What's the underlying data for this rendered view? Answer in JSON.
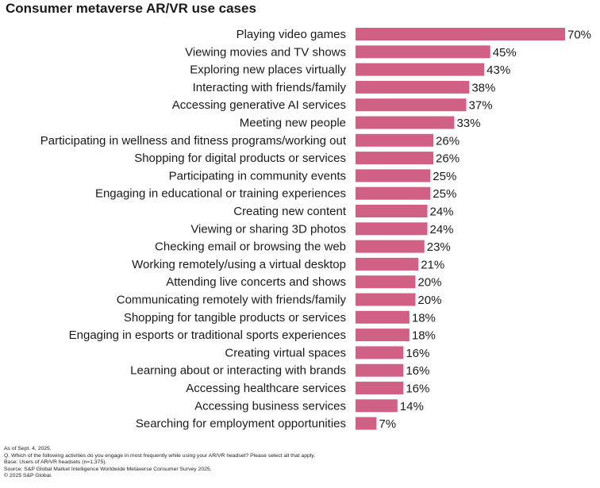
{
  "title": "Consumer metaverse AR/VR use cases",
  "chart_data": {
    "type": "bar",
    "orientation": "horizontal",
    "title": "Consumer metaverse AR/VR use cases",
    "xlabel": "",
    "ylabel": "",
    "unit": "%",
    "xlim": [
      0,
      70
    ],
    "grid": false,
    "color": "#d06185",
    "categories": [
      "Playing video games",
      "Viewing movies and TV shows",
      "Exploring new places virtually",
      "Interacting with friends/family",
      "Accessing generative AI services",
      "Meeting new people",
      "Participating in wellness and fitness programs/working out",
      "Shopping for digital products or services",
      "Participating in community events",
      "Engaging in educational or training experiences",
      "Creating new content",
      "Viewing or sharing 3D photos",
      "Checking email or browsing the web",
      "Working remotely/using a virtual desktop",
      "Attending live concerts and shows",
      "Communicating remotely with friends/family",
      "Shopping for tangible products or services",
      "Engaging in esports or traditional sports experiences",
      "Creating virtual spaces",
      "Learning about or interacting with brands",
      "Accessing healthcare services",
      "Accessing business services",
      "Searching for employment opportunities"
    ],
    "values": [
      70,
      45,
      43,
      38,
      37,
      33,
      26,
      26,
      25,
      25,
      24,
      24,
      23,
      21,
      20,
      20,
      18,
      18,
      16,
      16,
      16,
      14,
      7
    ],
    "labels": [
      "70%",
      "45%",
      "43%",
      "38%",
      "37%",
      "33%",
      "26%",
      "26%",
      "25%",
      "25%",
      "24%",
      "24%",
      "23%",
      "21%",
      "20%",
      "20%",
      "18%",
      "18%",
      "16%",
      "16%",
      "16%",
      "14%",
      "7%"
    ]
  },
  "notes": [
    "As of Sept. 4, 2025.",
    "Q. Which of the following activities do you engage in most frequently while using your AR/VR headset? Please select all that apply.",
    "Base: Users of AR/VR headsets (n=1,375).",
    "Source: S&P Global Market Intelligence Worldwide Metaverse Consumer Survey 2025.",
    "© 2025 S&P Global."
  ]
}
